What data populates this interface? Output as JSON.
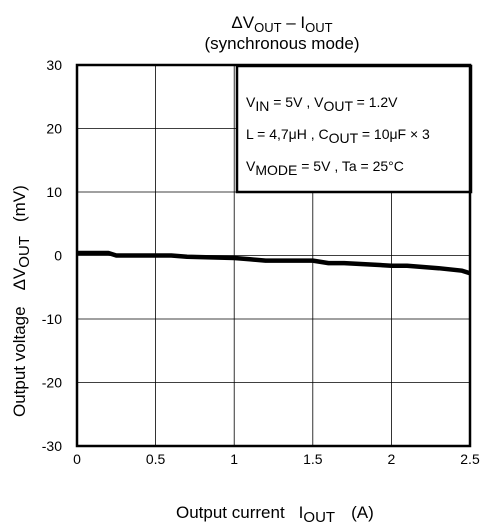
{
  "chart_data": {
    "type": "line",
    "title": {
      "delta": "Δ",
      "v": "V",
      "v_sub": "OUT",
      "dash": " – I",
      "i_sub": "OUT"
    },
    "subtitle": "(synchronous mode)",
    "xlabel": {
      "prefix": "Output current",
      "symbol": "I",
      "symbol_sub": "OUT",
      "unit": "(A)"
    },
    "ylabel": {
      "prefix": "Output voltage",
      "delta": "Δ",
      "symbol": "V",
      "symbol_sub": "OUT",
      "unit": "(mV)"
    },
    "xlim": [
      0,
      2.5
    ],
    "ylim": [
      -30,
      30
    ],
    "x_ticks": [
      "0",
      "0.5",
      "1",
      "1.5",
      "2",
      "2.5"
    ],
    "y_ticks": [
      "30",
      "20",
      "10",
      "0",
      "-10",
      "-20",
      "-30"
    ],
    "grid": true,
    "line_color": "#000000",
    "series": [
      {
        "x": [
          0,
          0.2,
          0.25,
          0.6,
          0.7,
          1.0,
          1.1,
          1.2,
          1.5,
          1.6,
          1.7,
          2.0,
          2.1,
          2.3,
          2.45,
          2.5
        ],
        "y": [
          0.4,
          0.4,
          0.0,
          0.0,
          -0.2,
          -0.4,
          -0.6,
          -0.8,
          -0.8,
          -1.2,
          -1.2,
          -1.6,
          -1.6,
          -2.0,
          -2.4,
          -2.8
        ]
      }
    ],
    "conditions": [
      {
        "parts": [
          [
            "V",
            ""
          ],
          [
            "IN",
            "sub"
          ],
          [
            " = 5V , V",
            ""
          ],
          [
            "OUT",
            "sub"
          ],
          [
            " = 1.2V",
            ""
          ]
        ]
      },
      {
        "parts": [
          [
            "L = 4,7μH , C",
            ""
          ],
          [
            "OUT",
            "sub"
          ],
          [
            " = 10μF × 3",
            ""
          ]
        ]
      },
      {
        "parts": [
          [
            "V",
            ""
          ],
          [
            "MODE",
            "sub"
          ],
          [
            " = 5V , Ta = 25°C",
            ""
          ]
        ]
      }
    ]
  }
}
